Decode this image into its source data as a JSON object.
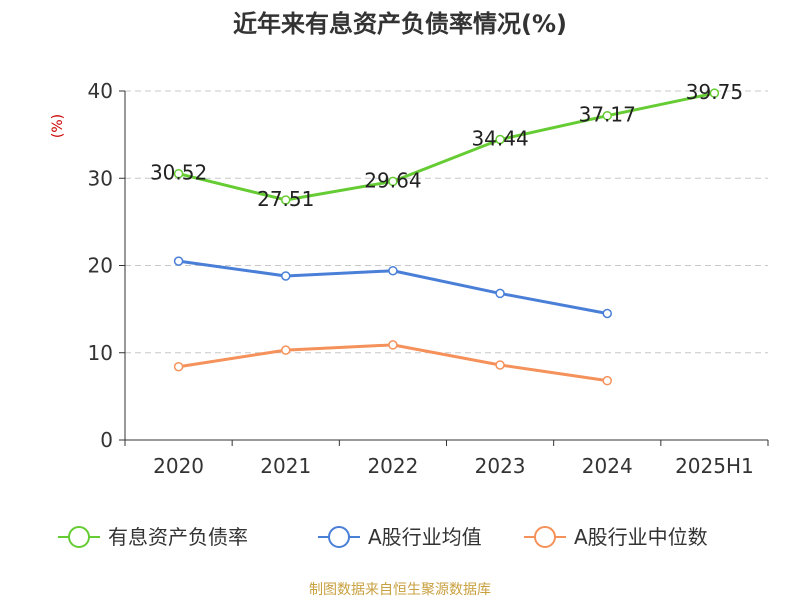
{
  "chart_data": {
    "type": "line",
    "title": "近年来有息资产负债率情况(%)",
    "ylabel": "(%)",
    "xlabel": "",
    "ylim": [
      0,
      40
    ],
    "yticks": [
      "0",
      "10",
      "20",
      "30",
      "40"
    ],
    "categories": [
      "2020",
      "2021",
      "2022",
      "2023",
      "2024",
      "2025H1"
    ],
    "grid": true,
    "legend_position": "bottom",
    "series": [
      {
        "name": "有息资产负债率",
        "color": "#66cc33",
        "values": [
          30.52,
          27.51,
          29.64,
          34.44,
          37.17,
          39.75
        ],
        "labels": [
          "30.52",
          "27.51",
          "29.64",
          "34.44",
          "37.17",
          "39.75"
        ]
      },
      {
        "name": "A股行业均值",
        "color": "#4a7fd8",
        "values": [
          20.5,
          18.8,
          19.4,
          16.8,
          14.5,
          null
        ]
      },
      {
        "name": "A股行业中位数",
        "color": "#f5915a",
        "values": [
          8.4,
          10.3,
          10.9,
          8.6,
          6.8,
          null
        ]
      }
    ]
  },
  "source": "制图数据来自恒生聚源数据库"
}
